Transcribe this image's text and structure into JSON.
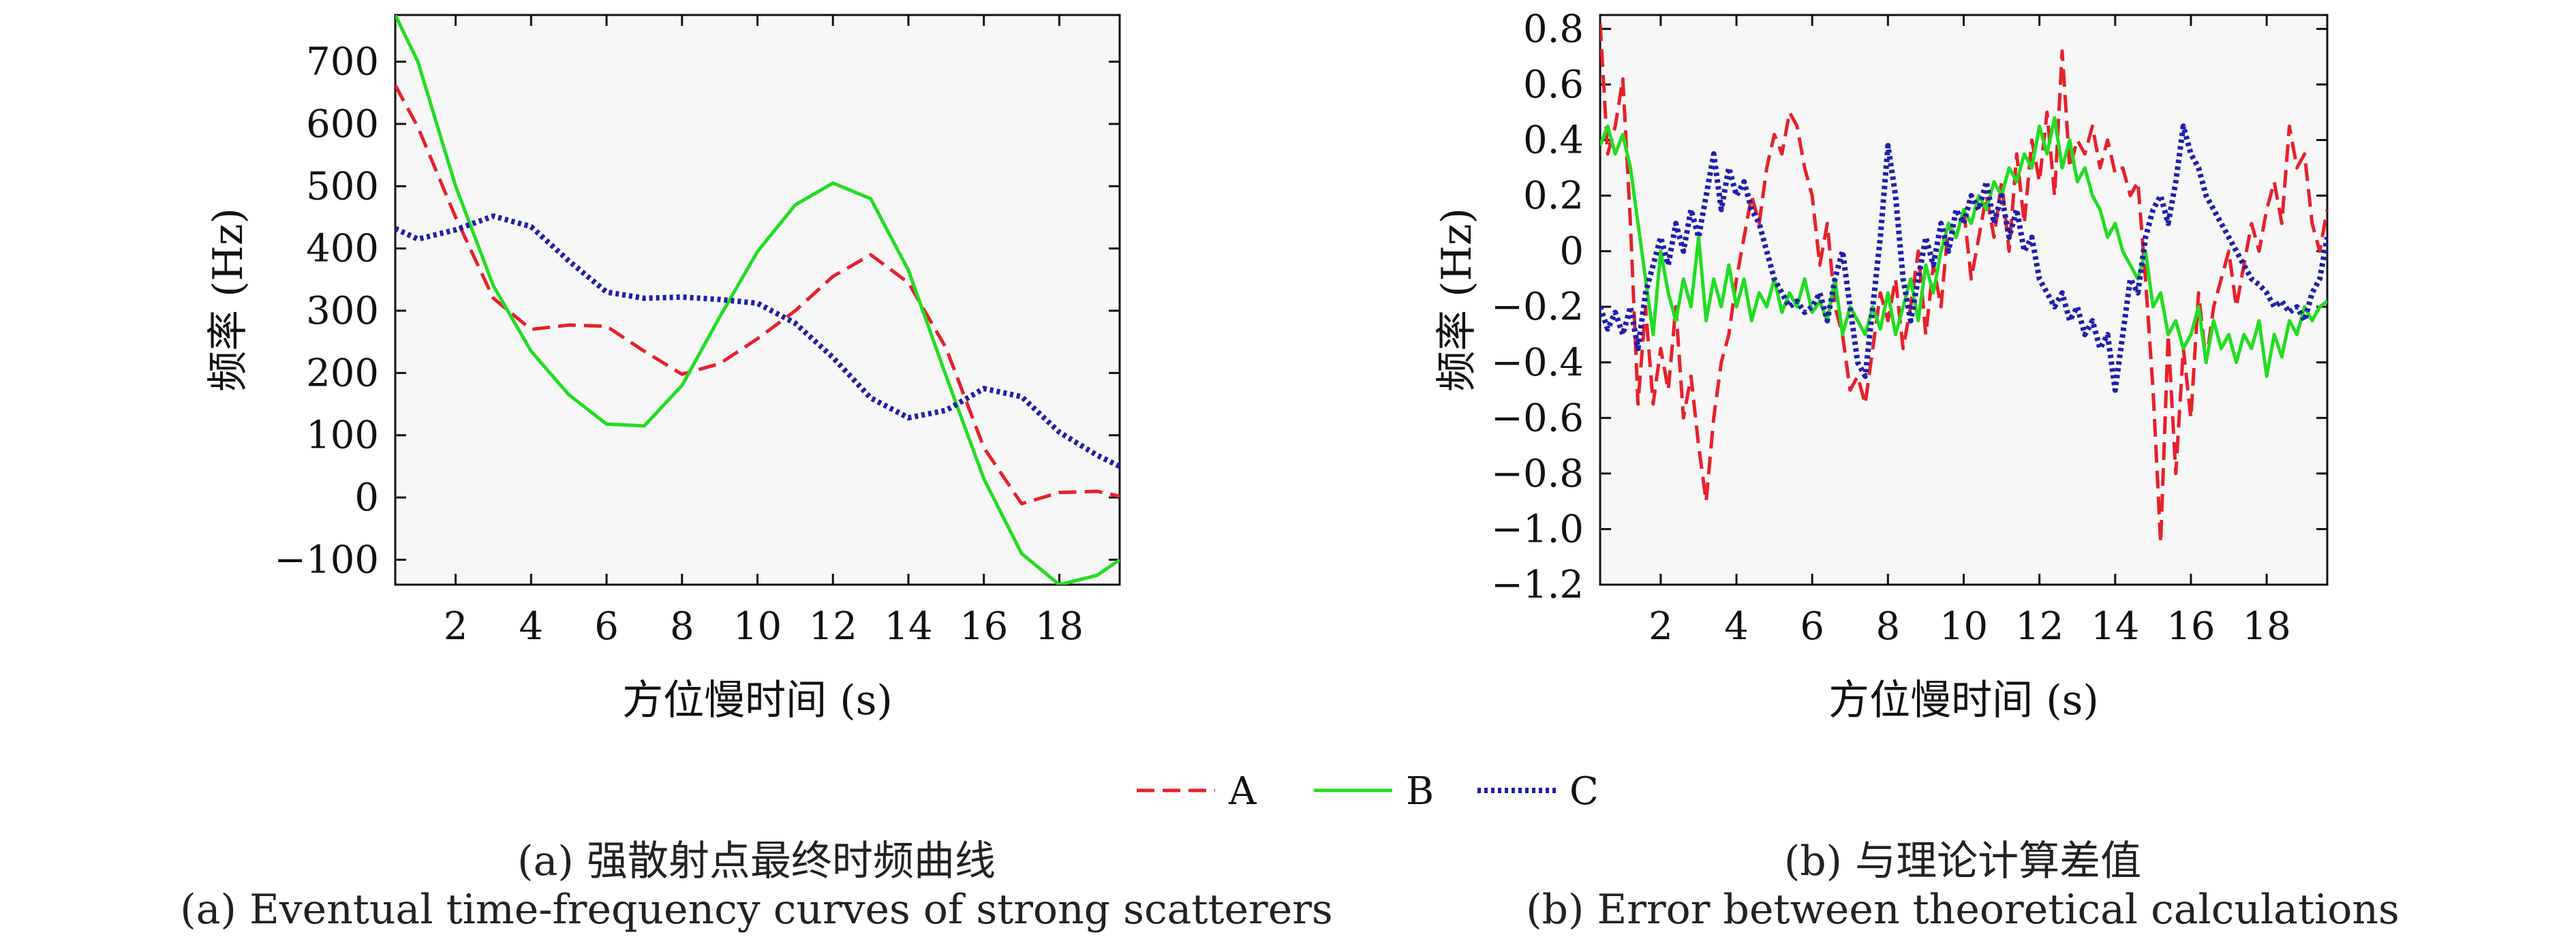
{
  "chart_data": [
    {
      "type": "line",
      "caption_zh": "(a) 强散射点最终时频曲线",
      "caption_en": "(a) Eventual time-frequency curves of strong scatterers",
      "xlabel": "方位慢时间 (s)",
      "ylabel": "频率 (Hz)",
      "xlim": [
        0.4,
        19.6
      ],
      "ylim": [
        -140,
        775
      ],
      "xticks": [
        2,
        4,
        6,
        8,
        10,
        12,
        14,
        16,
        18
      ],
      "yticks": [
        -100,
        0,
        100,
        200,
        300,
        400,
        500,
        600,
        700
      ],
      "grid": false,
      "series": [
        {
          "name": "A",
          "color": "#e8202a",
          "style": "dashed",
          "x": [
            0.4,
            1,
            2,
            3,
            4,
            5,
            6,
            7,
            8,
            9,
            10,
            11,
            12,
            13,
            14,
            15,
            16,
            17,
            18,
            19,
            19.6
          ],
          "y": [
            662,
            595,
            450,
            320,
            270,
            277,
            275,
            235,
            198,
            215,
            255,
            300,
            355,
            390,
            345,
            240,
            80,
            -10,
            8,
            10,
            2
          ]
        },
        {
          "name": "B",
          "color": "#22dd22",
          "style": "solid",
          "x": [
            0.4,
            1,
            2,
            3,
            4,
            5,
            6,
            7,
            8,
            9,
            10,
            11,
            12,
            13,
            14,
            15,
            16,
            17,
            18,
            19,
            19.6
          ],
          "y": [
            775,
            700,
            500,
            340,
            235,
            165,
            118,
            115,
            180,
            290,
            395,
            470,
            505,
            480,
            365,
            195,
            30,
            -90,
            -140,
            -125,
            -100
          ]
        },
        {
          "name": "C",
          "color": "#1f1faa",
          "style": "dotted",
          "x": [
            0.4,
            1,
            2,
            3,
            4,
            5,
            6,
            7,
            8,
            9,
            10,
            11,
            12,
            13,
            14,
            15,
            16,
            17,
            18,
            19,
            19.6
          ],
          "y": [
            432,
            415,
            430,
            452,
            435,
            380,
            330,
            320,
            322,
            318,
            312,
            280,
            225,
            160,
            128,
            140,
            175,
            162,
            105,
            68,
            50
          ]
        }
      ]
    },
    {
      "type": "line",
      "caption_zh": "(b) 与理论计算差值",
      "caption_en": "(b) Error between theoretical calculations",
      "xlabel": "方位慢时间 (s)",
      "ylabel": "频率 (Hz)",
      "xlim": [
        0.4,
        19.6
      ],
      "ylim": [
        -1.2,
        0.85
      ],
      "xticks": [
        2,
        4,
        6,
        8,
        10,
        12,
        14,
        16,
        18
      ],
      "yticks": [
        -1.2,
        -1.0,
        -0.8,
        -0.6,
        -0.4,
        -0.2,
        0,
        0.2,
        0.4,
        0.6,
        0.8
      ],
      "grid": false,
      "series": [
        {
          "name": "A",
          "color": "#e8202a",
          "style": "dashed",
          "x": [
            0.4,
            0.6,
            0.8,
            1.0,
            1.2,
            1.4,
            1.6,
            1.8,
            2.0,
            2.2,
            2.4,
            2.6,
            2.8,
            3.0,
            3.2,
            3.4,
            3.6,
            3.8,
            4.0,
            4.2,
            4.4,
            4.6,
            4.8,
            5.0,
            5.2,
            5.4,
            5.6,
            5.8,
            6.0,
            6.2,
            6.4,
            6.6,
            6.8,
            7.0,
            7.2,
            7.4,
            7.6,
            7.8,
            8.0,
            8.2,
            8.4,
            8.6,
            8.8,
            9.0,
            9.2,
            9.4,
            9.6,
            9.8,
            10.0,
            10.2,
            10.4,
            10.6,
            10.8,
            11.0,
            11.2,
            11.4,
            11.6,
            11.8,
            12.0,
            12.2,
            12.4,
            12.6,
            12.8,
            13.0,
            13.2,
            13.4,
            13.6,
            13.8,
            14.0,
            14.2,
            14.4,
            14.6,
            14.8,
            15.0,
            15.2,
            15.4,
            15.6,
            15.8,
            16.0,
            16.2,
            16.4,
            16.6,
            16.8,
            17.0,
            17.2,
            17.4,
            17.6,
            17.8,
            18.0,
            18.2,
            18.4,
            18.6,
            18.8,
            19.0,
            19.2,
            19.4,
            19.6
          ],
          "y": [
            0.82,
            0.35,
            0.45,
            0.62,
            0.1,
            -0.55,
            -0.2,
            -0.55,
            -0.35,
            -0.5,
            -0.2,
            -0.6,
            -0.45,
            -0.7,
            -0.9,
            -0.6,
            -0.4,
            -0.3,
            -0.1,
            0.05,
            0.2,
            0.1,
            0.3,
            0.42,
            0.35,
            0.5,
            0.45,
            0.3,
            0.2,
            -0.05,
            0.1,
            -0.2,
            -0.3,
            -0.5,
            -0.45,
            -0.55,
            -0.35,
            -0.15,
            -0.25,
            -0.1,
            -0.35,
            -0.2,
            0.0,
            -0.3,
            -0.05,
            -0.2,
            0.1,
            0.05,
            0.15,
            -0.1,
            0.05,
            0.2,
            0.05,
            0.25,
            0.0,
            0.35,
            0.1,
            0.4,
            0.25,
            0.5,
            0.2,
            0.72,
            0.3,
            0.4,
            0.35,
            0.45,
            0.3,
            0.4,
            0.28,
            0.3,
            0.2,
            0.25,
            -0.1,
            -0.5,
            -1.05,
            -0.3,
            -0.8,
            -0.35,
            -0.6,
            -0.15,
            -0.4,
            -0.2,
            -0.1,
            0.0,
            -0.2,
            -0.05,
            0.1,
            0.0,
            0.15,
            0.25,
            0.1,
            0.45,
            0.3,
            0.35,
            0.1,
            0.0,
            0.15
          ]
        },
        {
          "name": "B",
          "color": "#22dd22",
          "style": "solid",
          "x": [
            0.4,
            0.6,
            0.8,
            1.0,
            1.2,
            1.4,
            1.6,
            1.8,
            2.0,
            2.2,
            2.4,
            2.6,
            2.8,
            3.0,
            3.2,
            3.4,
            3.6,
            3.8,
            4.0,
            4.2,
            4.4,
            4.6,
            4.8,
            5.0,
            5.2,
            5.4,
            5.6,
            5.8,
            6.0,
            6.2,
            6.4,
            6.6,
            6.8,
            7.0,
            7.2,
            7.4,
            7.6,
            7.8,
            8.0,
            8.2,
            8.4,
            8.6,
            8.8,
            9.0,
            9.2,
            9.4,
            9.6,
            9.8,
            10.0,
            10.2,
            10.4,
            10.6,
            10.8,
            11.0,
            11.2,
            11.4,
            11.6,
            11.8,
            12.0,
            12.2,
            12.4,
            12.6,
            12.8,
            13.0,
            13.2,
            13.4,
            13.6,
            13.8,
            14.0,
            14.2,
            14.4,
            14.6,
            14.8,
            15.0,
            15.2,
            15.4,
            15.6,
            15.8,
            16.0,
            16.2,
            16.4,
            16.6,
            16.8,
            17.0,
            17.2,
            17.4,
            17.6,
            17.8,
            18.0,
            18.2,
            18.4,
            18.6,
            18.8,
            19.0,
            19.2,
            19.4,
            19.6
          ],
          "y": [
            0.38,
            0.45,
            0.35,
            0.42,
            0.3,
            0.1,
            -0.1,
            -0.3,
            0.0,
            -0.15,
            -0.25,
            -0.1,
            -0.2,
            0.05,
            -0.25,
            -0.1,
            -0.2,
            -0.05,
            -0.2,
            -0.1,
            -0.25,
            -0.15,
            -0.2,
            -0.1,
            -0.22,
            -0.15,
            -0.2,
            -0.1,
            -0.22,
            -0.18,
            -0.25,
            -0.1,
            -0.3,
            -0.2,
            -0.25,
            -0.3,
            -0.2,
            -0.28,
            -0.15,
            -0.3,
            -0.2,
            -0.1,
            -0.25,
            -0.05,
            -0.15,
            0.0,
            0.1,
            0.05,
            0.15,
            0.1,
            0.2,
            0.15,
            0.25,
            0.2,
            0.3,
            0.25,
            0.35,
            0.3,
            0.45,
            0.35,
            0.48,
            0.3,
            0.4,
            0.25,
            0.3,
            0.2,
            0.15,
            0.05,
            0.1,
            0.0,
            -0.05,
            -0.1,
            0.0,
            -0.2,
            -0.15,
            -0.3,
            -0.25,
            -0.35,
            -0.3,
            -0.2,
            -0.4,
            -0.25,
            -0.35,
            -0.3,
            -0.4,
            -0.3,
            -0.35,
            -0.25,
            -0.45,
            -0.3,
            -0.38,
            -0.25,
            -0.3,
            -0.2,
            -0.25,
            -0.2,
            -0.18
          ]
        },
        {
          "name": "C",
          "color": "#1f1faa",
          "style": "dotted",
          "x": [
            0.4,
            0.6,
            0.8,
            1.0,
            1.2,
            1.4,
            1.6,
            1.8,
            2.0,
            2.2,
            2.4,
            2.6,
            2.8,
            3.0,
            3.2,
            3.4,
            3.6,
            3.8,
            4.0,
            4.2,
            4.4,
            4.6,
            4.8,
            5.0,
            5.2,
            5.4,
            5.6,
            5.8,
            6.0,
            6.2,
            6.4,
            6.6,
            6.8,
            7.0,
            7.2,
            7.4,
            7.6,
            7.8,
            8.0,
            8.2,
            8.4,
            8.6,
            8.8,
            9.0,
            9.2,
            9.4,
            9.6,
            9.8,
            10.0,
            10.2,
            10.4,
            10.6,
            10.8,
            11.0,
            11.2,
            11.4,
            11.6,
            11.8,
            12.0,
            12.2,
            12.4,
            12.6,
            12.8,
            13.0,
            13.2,
            13.4,
            13.6,
            13.8,
            14.0,
            14.2,
            14.4,
            14.6,
            14.8,
            15.0,
            15.2,
            15.4,
            15.6,
            15.8,
            16.0,
            16.2,
            16.4,
            16.6,
            16.8,
            17.0,
            17.2,
            17.4,
            17.6,
            17.8,
            18.0,
            18.2,
            18.4,
            18.6,
            18.8,
            19.0,
            19.2,
            19.4,
            19.6
          ],
          "y": [
            -0.2,
            -0.28,
            -0.22,
            -0.3,
            -0.2,
            -0.35,
            -0.15,
            -0.05,
            0.05,
            -0.05,
            0.1,
            0.0,
            0.15,
            0.05,
            0.2,
            0.35,
            0.15,
            0.3,
            0.2,
            0.25,
            0.15,
            0.1,
            0.0,
            -0.1,
            -0.15,
            -0.2,
            -0.18,
            -0.22,
            -0.2,
            -0.15,
            -0.25,
            -0.1,
            0.0,
            -0.2,
            -0.4,
            -0.45,
            -0.2,
            0.05,
            0.38,
            0.2,
            -0.1,
            -0.25,
            -0.1,
            0.05,
            -0.05,
            0.1,
            0.0,
            0.15,
            0.1,
            0.2,
            0.15,
            0.25,
            0.1,
            0.2,
            0.05,
            0.15,
            0.0,
            0.05,
            -0.1,
            -0.15,
            -0.2,
            -0.15,
            -0.25,
            -0.2,
            -0.3,
            -0.25,
            -0.35,
            -0.3,
            -0.5,
            -0.3,
            -0.1,
            -0.15,
            0.05,
            0.15,
            0.2,
            0.1,
            0.25,
            0.45,
            0.35,
            0.3,
            0.2,
            0.15,
            0.1,
            0.05,
            0.0,
            -0.05,
            -0.1,
            -0.12,
            -0.15,
            -0.2,
            -0.18,
            -0.22,
            -0.2,
            -0.25,
            -0.15,
            -0.1,
            0.05
          ]
        }
      ]
    }
  ],
  "legend": {
    "placement": "bottom-center",
    "items": [
      {
        "name": "A",
        "color": "#e8202a",
        "style": "dashed"
      },
      {
        "name": "B",
        "color": "#22dd22",
        "style": "solid"
      },
      {
        "name": "C",
        "color": "#1f1faa",
        "style": "dotted"
      }
    ]
  }
}
